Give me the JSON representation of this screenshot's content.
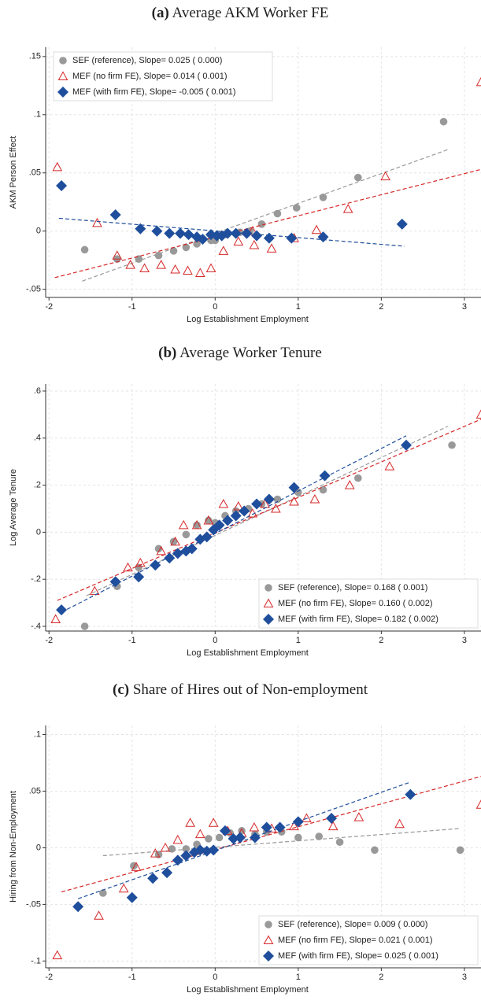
{
  "chart_data": [
    {
      "type": "scatter",
      "panel": "(a)",
      "title": "Average AKM Worker FE",
      "x_label": "Log Establishment Employment",
      "y_label": "AKM Person Effect",
      "xlim": [
        -2.04,
        3.2
      ],
      "ylim": [
        -0.057,
        0.158
      ],
      "xticks": [
        -2,
        -1,
        0,
        1,
        2,
        3
      ],
      "yticks": [
        {
          "value": 0.15,
          "label": ".15"
        },
        {
          "value": 0.1,
          "label": ".1"
        },
        {
          "value": 0.05,
          "label": ".05"
        },
        0,
        {
          "value": -0.05,
          "label": "-.05"
        }
      ],
      "grid": true,
      "legend": "upper left",
      "series": [
        {
          "name": "SEF (reference), Slope= 0.025 ( 0.000)",
          "color": "#999999",
          "marker": "circle",
          "x": [
            -1.57,
            -1.18,
            -0.92,
            -0.68,
            -0.5,
            -0.35,
            -0.22,
            -0.05,
            0.0,
            0.12,
            0.3,
            0.42,
            0.56,
            0.75,
            0.98,
            1.3,
            1.72,
            2.75
          ],
          "values": [
            -0.016,
            -0.024,
            -0.024,
            -0.021,
            -0.017,
            -0.014,
            -0.011,
            -0.008,
            -0.008,
            -0.003,
            -0.001,
            0.0,
            0.006,
            0.015,
            0.02,
            0.029,
            0.046,
            0.094
          ],
          "fit": {
            "x": [
              -1.6,
              2.8
            ],
            "y": [
              -0.043,
              0.07
            ]
          }
        },
        {
          "name": "MEF (no firm FE), Slope= 0.014 ( 0.001)",
          "color": "#d62728",
          "marker": "triangle",
          "x": [
            -1.9,
            -1.42,
            -1.18,
            -1.02,
            -0.85,
            -0.65,
            -0.48,
            -0.33,
            -0.18,
            -0.05,
            0.1,
            0.28,
            0.45,
            0.47,
            0.68,
            0.95,
            1.22,
            1.6,
            2.05,
            3.2
          ],
          "values": [
            0.055,
            0.007,
            -0.021,
            -0.029,
            -0.032,
            -0.029,
            -0.033,
            -0.034,
            -0.036,
            -0.032,
            -0.017,
            -0.009,
            0.0,
            -0.012,
            -0.015,
            -0.006,
            0.001,
            0.019,
            0.047,
            0.128
          ],
          "fit": {
            "x": [
              -1.93,
              3.2
            ],
            "y": [
              -0.04,
              0.053
            ]
          }
        },
        {
          "name": "MEF (with firm FE), Slope= -0.005 ( 0.001)",
          "color": "#1f4e9c",
          "marker": "diamond",
          "x": [
            -1.85,
            -1.2,
            -0.9,
            -0.7,
            -0.55,
            -0.42,
            -0.32,
            -0.22,
            -0.15,
            -0.05,
            0.02,
            0.08,
            0.15,
            0.25,
            0.38,
            0.5,
            0.65,
            0.92,
            1.3,
            2.25
          ],
          "values": [
            0.039,
            0.014,
            0.002,
            0.0,
            -0.002,
            -0.002,
            -0.003,
            -0.005,
            -0.007,
            -0.003,
            -0.004,
            -0.004,
            -0.002,
            -0.002,
            -0.002,
            -0.004,
            -0.006,
            -0.006,
            -0.005,
            0.006
          ],
          "fit": {
            "x": [
              -1.88,
              2.28
            ],
            "y": [
              0.011,
              -0.013
            ]
          }
        }
      ]
    },
    {
      "type": "scatter",
      "panel": "(b)",
      "title": "Average Worker Tenure",
      "x_label": "Log Establishment Employment",
      "y_label": "Log Average Tenure",
      "xlim": [
        -2.04,
        3.2
      ],
      "ylim": [
        -0.42,
        0.63
      ],
      "xticks": [
        -2,
        -1,
        0,
        1,
        2,
        3
      ],
      "yticks": [
        {
          "value": 0.6,
          "label": ".6"
        },
        {
          "value": 0.4,
          "label": ".4"
        },
        {
          "value": 0.2,
          "label": ".2"
        },
        0,
        {
          "value": -0.2,
          "label": "-.2"
        },
        {
          "value": -0.4,
          "label": "-.4"
        }
      ],
      "grid": true,
      "legend": "lower right",
      "series": [
        {
          "name": "SEF (reference), Slope= 0.168 ( 0.001)",
          "color": "#999999",
          "marker": "circle",
          "x": [
            -1.57,
            -1.18,
            -0.92,
            -0.68,
            -0.5,
            -0.35,
            -0.22,
            -0.08,
            0.0,
            0.12,
            0.25,
            0.4,
            0.56,
            0.75,
            1.0,
            1.3,
            1.72,
            2.85
          ],
          "values": [
            -0.4,
            -0.23,
            -0.15,
            -0.07,
            -0.04,
            -0.01,
            0.03,
            0.05,
            0.04,
            0.07,
            0.09,
            0.1,
            0.12,
            0.14,
            0.17,
            0.18,
            0.23,
            0.37
          ],
          "fit": {
            "x": [
              -1.55,
              2.8
            ],
            "y": [
              -0.27,
              0.45
            ]
          }
        },
        {
          "name": "MEF (no firm FE), Slope= 0.160 ( 0.002)",
          "color": "#d62728",
          "marker": "triangle",
          "x": [
            -1.92,
            -1.45,
            -1.05,
            -0.9,
            -0.65,
            -0.48,
            -0.38,
            -0.22,
            -0.08,
            0.1,
            0.28,
            0.45,
            0.6,
            0.73,
            0.95,
            1.2,
            1.62,
            2.1,
            3.2
          ],
          "values": [
            -0.37,
            -0.25,
            -0.15,
            -0.13,
            -0.08,
            -0.04,
            0.03,
            0.03,
            0.05,
            0.12,
            0.11,
            0.08,
            0.12,
            0.1,
            0.13,
            0.14,
            0.2,
            0.28,
            0.5
          ],
          "fit": {
            "x": [
              -1.9,
              3.2
            ],
            "y": [
              -0.29,
              0.48
            ]
          }
        },
        {
          "name": "MEF (with firm FE), Slope= 0.182 ( 0.002)",
          "color": "#1f4e9c",
          "marker": "diamond",
          "x": [
            -1.85,
            -1.2,
            -0.92,
            -0.72,
            -0.55,
            -0.45,
            -0.35,
            -0.28,
            -0.18,
            -0.1,
            -0.02,
            0.05,
            0.15,
            0.25,
            0.35,
            0.5,
            0.65,
            0.95,
            1.32,
            2.3
          ],
          "values": [
            -0.33,
            -0.21,
            -0.19,
            -0.14,
            -0.11,
            -0.09,
            -0.08,
            -0.07,
            -0.03,
            -0.02,
            0.01,
            0.03,
            0.05,
            0.07,
            0.09,
            0.12,
            0.14,
            0.19,
            0.24,
            0.37
          ],
          "fit": {
            "x": [
              -1.85,
              2.3
            ],
            "y": [
              -0.34,
              0.41
            ]
          }
        }
      ]
    },
    {
      "type": "scatter",
      "panel": "(c)",
      "title": "Share of Hires out of Non-employment",
      "x_label": "Log Establishment Employment",
      "y_label": "Hiring from Non-Employment",
      "xlim": [
        -2.04,
        3.2
      ],
      "ylim": [
        -0.106,
        0.108
      ],
      "xticks": [
        -2,
        -1,
        0,
        1,
        2,
        3
      ],
      "yticks": [
        {
          "value": 0.1,
          "label": ".1"
        },
        {
          "value": 0.05,
          "label": ".05"
        },
        0,
        {
          "value": -0.05,
          "label": "-.05"
        },
        {
          "value": -0.1,
          "label": "-.1"
        }
      ],
      "grid": true,
      "legend": "lower right",
      "series": [
        {
          "name": "SEF (reference), Slope= 0.009 ( 0.000)",
          "color": "#999999",
          "marker": "circle",
          "x": [
            -1.35,
            -0.98,
            -0.68,
            -0.52,
            -0.35,
            -0.22,
            -0.08,
            0.05,
            0.18,
            0.32,
            0.48,
            0.62,
            0.8,
            1.0,
            1.25,
            1.5,
            1.92,
            2.95
          ],
          "values": [
            -0.04,
            -0.016,
            -0.006,
            -0.001,
            -0.001,
            0.003,
            0.008,
            0.009,
            0.013,
            0.015,
            0.012,
            0.014,
            0.014,
            0.009,
            0.01,
            0.005,
            -0.002,
            -0.002
          ],
          "fit": {
            "x": [
              -1.35,
              2.95
            ],
            "y": [
              -0.007,
              0.017
            ]
          }
        },
        {
          "name": "MEF (no firm FE), Slope= 0.021 ( 0.001)",
          "color": "#d62728",
          "marker": "triangle",
          "x": [
            -1.9,
            -1.4,
            -1.1,
            -0.95,
            -0.72,
            -0.6,
            -0.45,
            -0.3,
            -0.18,
            -0.02,
            0.15,
            0.32,
            0.47,
            0.68,
            0.95,
            1.1,
            1.42,
            1.73,
            2.22,
            3.2
          ],
          "values": [
            -0.095,
            -0.06,
            -0.036,
            -0.017,
            -0.005,
            0.0,
            0.007,
            0.022,
            0.012,
            0.022,
            0.015,
            0.013,
            0.018,
            0.017,
            0.019,
            0.026,
            0.019,
            0.027,
            0.021,
            0.038
          ],
          "fit": {
            "x": [
              -1.85,
              3.2
            ],
            "y": [
              -0.039,
              0.063
            ]
          }
        },
        {
          "name": "MEF (with firm FE), Slope= 0.025 ( 0.001)",
          "color": "#1f4e9c",
          "marker": "diamond",
          "x": [
            -1.65,
            -1.0,
            -0.75,
            -0.58,
            -0.45,
            -0.35,
            -0.25,
            -0.18,
            -0.1,
            -0.02,
            0.12,
            0.22,
            0.3,
            0.48,
            0.62,
            0.78,
            1.0,
            1.4,
            2.35
          ],
          "values": [
            -0.052,
            -0.044,
            -0.027,
            -0.022,
            -0.011,
            -0.007,
            -0.004,
            -0.002,
            -0.003,
            -0.002,
            0.015,
            0.008,
            0.009,
            0.009,
            0.018,
            0.018,
            0.023,
            0.026,
            0.047
          ],
          "fit": {
            "x": [
              -1.65,
              2.35
            ],
            "y": [
              -0.045,
              0.058
            ]
          }
        }
      ]
    }
  ]
}
